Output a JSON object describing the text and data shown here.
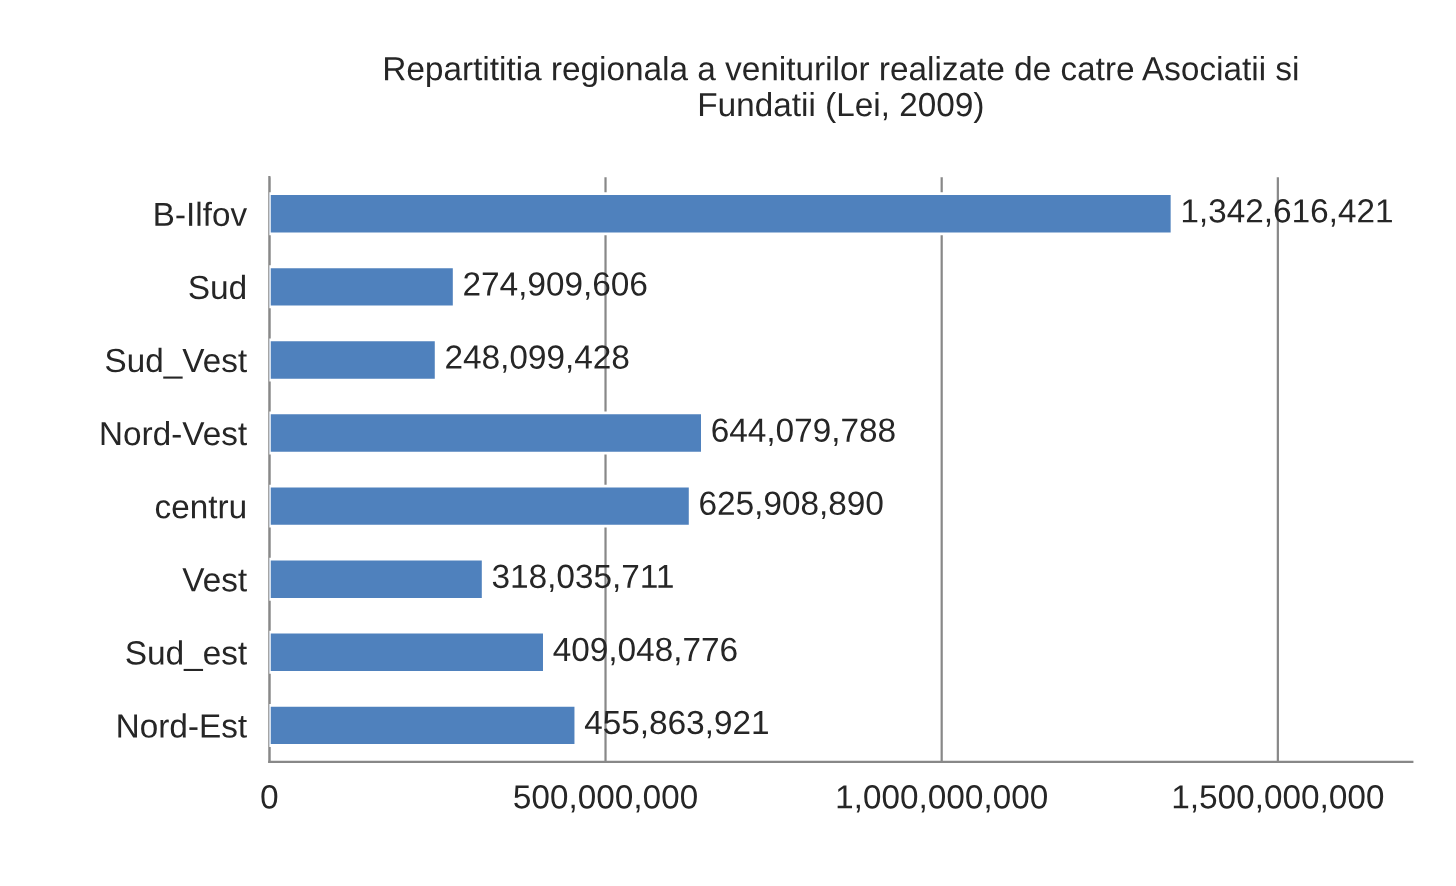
{
  "chart_data": {
    "type": "bar",
    "orientation": "horizontal",
    "title": "Repartititia regionala a veniturilor realizate de catre Asociatii si Fundatii (Lei, 2009)",
    "categories": [
      "B-Ilfov",
      "Sud",
      "Sud_Vest",
      "Nord-Vest",
      "centru",
      "Vest",
      "Sud_est",
      "Nord-Est"
    ],
    "values": [
      1342616421,
      274909606,
      248099428,
      644079788,
      625908890,
      318035711,
      409048776,
      455863921
    ],
    "value_labels": [
      "1,342,616,421",
      "274,909,606",
      "248,099,428",
      "644,079,788",
      "625,908,890",
      "318,035,711",
      "409,048,776",
      "455,863,921"
    ],
    "color": "#4f81bd",
    "xlim": [
      0,
      1700000000
    ],
    "xticks": [
      {
        "value": 0,
        "label": "0"
      },
      {
        "value": 500000000,
        "label": "500,000,000"
      },
      {
        "value": 1000000000,
        "label": "1,000,000,000"
      },
      {
        "value": 1500000000,
        "label": "1,500,000,000"
      }
    ],
    "grid": "x",
    "legend": false
  }
}
